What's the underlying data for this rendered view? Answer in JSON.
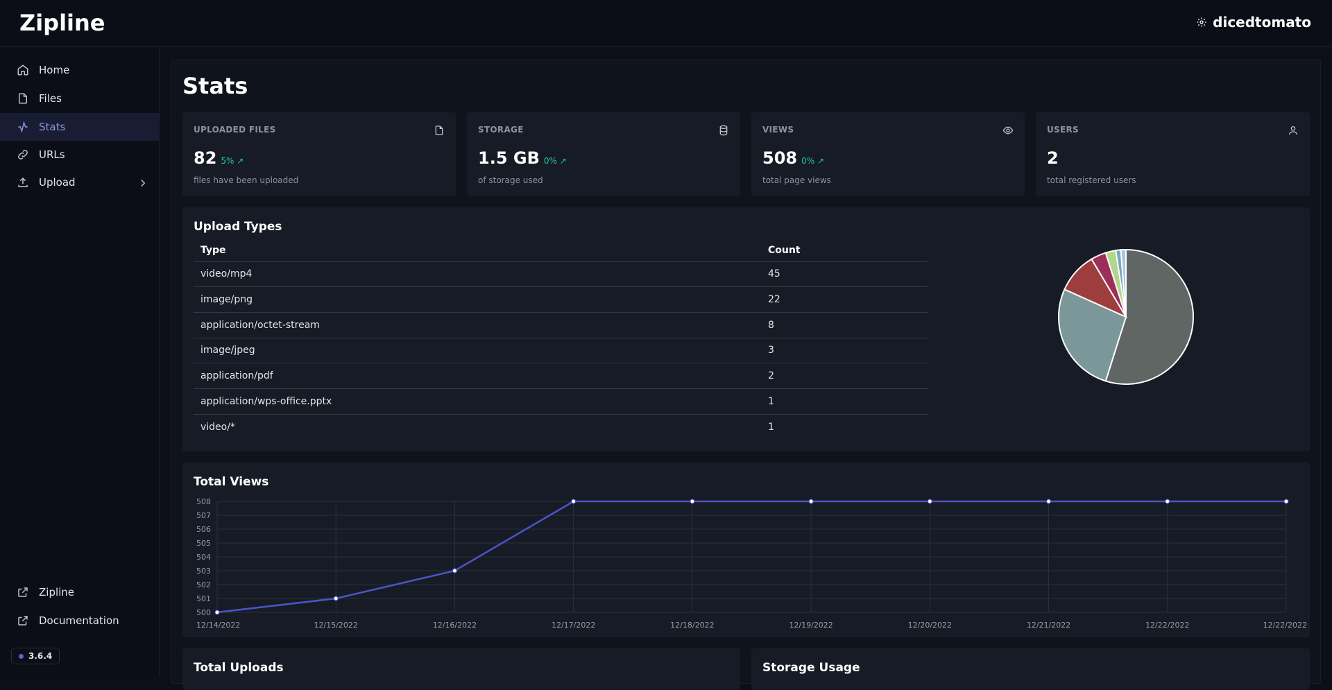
{
  "app": {
    "title": "Zipline",
    "user": "dicedtomato",
    "version": "3.6.4"
  },
  "sidebar": {
    "items": [
      {
        "label": "Home",
        "icon": "home-icon"
      },
      {
        "label": "Files",
        "icon": "file-icon"
      },
      {
        "label": "Stats",
        "icon": "activity-icon",
        "active": true
      },
      {
        "label": "URLs",
        "icon": "link-icon"
      },
      {
        "label": "Upload",
        "icon": "upload-icon"
      }
    ],
    "footer_links": [
      {
        "label": "Zipline",
        "icon": "external-link-icon"
      },
      {
        "label": "Documentation",
        "icon": "external-link-icon"
      }
    ]
  },
  "page": {
    "title": "Stats"
  },
  "stats": [
    {
      "label": "UPLOADED FILES",
      "value": "82",
      "diff": "5%",
      "desc": "files have been uploaded",
      "icon": "file-icon"
    },
    {
      "label": "STORAGE",
      "value": "1.5 GB",
      "diff": "0%",
      "desc": "of storage used",
      "icon": "database-icon"
    },
    {
      "label": "VIEWS",
      "value": "508",
      "diff": "0%",
      "desc": "total page views",
      "icon": "eye-icon"
    },
    {
      "label": "USERS",
      "value": "2",
      "diff": "",
      "desc": "total registered users",
      "icon": "user-icon"
    }
  ],
  "upload_types": {
    "title": "Upload Types",
    "headers": [
      "Type",
      "Count"
    ],
    "rows": [
      [
        "video/mp4",
        "45"
      ],
      [
        "image/png",
        "22"
      ],
      [
        "application/octet-stream",
        "8"
      ],
      [
        "image/jpeg",
        "3"
      ],
      [
        "application/pdf",
        "2"
      ],
      [
        "application/wps-office.pptx",
        "1"
      ],
      [
        "video/*",
        "1"
      ]
    ]
  },
  "total_views": {
    "title": "Total Views"
  },
  "total_uploads": {
    "title": "Total Uploads"
  },
  "storage_usage": {
    "title": "Storage Usage"
  },
  "chart_data": [
    {
      "type": "pie",
      "categories": [
        "video/mp4",
        "image/png",
        "application/octet-stream",
        "image/jpeg",
        "application/pdf",
        "application/wps-office.pptx",
        "video/*"
      ],
      "values": [
        45,
        22,
        8,
        3,
        2,
        1,
        1
      ],
      "colors": [
        "#5f6664",
        "#7b9799",
        "#9d3d3d",
        "#9c2f59",
        "#b0d88a",
        "#7ba7b5",
        "#a9c4e6"
      ]
    },
    {
      "type": "line",
      "x": [
        "12/14/2022",
        "12/15/2022",
        "12/16/2022",
        "12/17/2022",
        "12/18/2022",
        "12/19/2022",
        "12/20/2022",
        "12/21/2022",
        "12/22/2022",
        "12/22/2022"
      ],
      "series": [
        {
          "values": [
            500,
            501,
            503,
            508,
            508,
            508,
            508,
            508,
            508,
            508
          ]
        }
      ],
      "ylim": [
        500,
        508
      ],
      "yticks": [
        "500",
        "501",
        "502",
        "503",
        "504",
        "505",
        "506",
        "507",
        "508"
      ],
      "grid": true,
      "color": "#4c54c7"
    }
  ]
}
